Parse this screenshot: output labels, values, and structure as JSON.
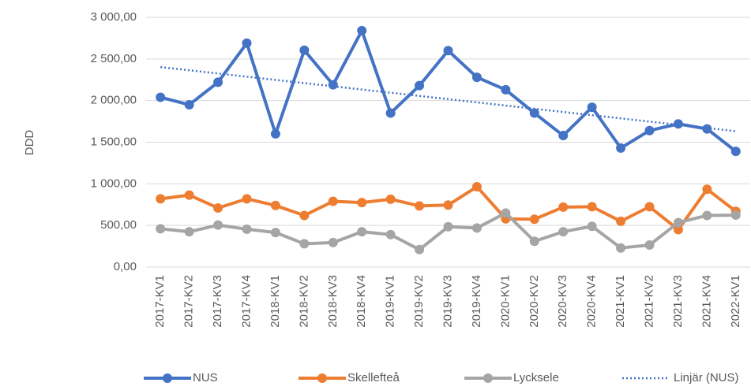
{
  "chart_data": {
    "type": "line",
    "y_label": "DDD",
    "categories": [
      "2017-KV1",
      "2017-KV2",
      "2017-KV3",
      "2017-KV4",
      "2018-KV1",
      "2018-KV2",
      "2018-KV3",
      "2018-KV4",
      "2019-KV1",
      "2019-KV2",
      "2019-KV3",
      "2019-KV4",
      "2020-KV1",
      "2020-KV2",
      "2020-KV3",
      "2020-KV4",
      "2021-KV1",
      "2021-KV2",
      "2021-KV3",
      "2021-KV4",
      "2022-KV1"
    ],
    "series": [
      {
        "name": "NUS",
        "color": "#4472c4",
        "values": [
          2040,
          1950,
          2220,
          2690,
          1600,
          2605,
          2190,
          2840,
          1850,
          2180,
          2600,
          2280,
          2130,
          1850,
          1580,
          1920,
          1430,
          1640,
          1720,
          1660,
          1390
        ]
      },
      {
        "name": "Skellefteå",
        "color": "#ed7d31",
        "values": [
          820,
          865,
          710,
          820,
          740,
          620,
          790,
          775,
          815,
          735,
          745,
          965,
          580,
          575,
          720,
          725,
          550,
          725,
          450,
          935,
          670
        ]
      },
      {
        "name": "Lycksele",
        "color": "#a5a5a5",
        "values": [
          460,
          425,
          505,
          455,
          415,
          280,
          295,
          425,
          390,
          210,
          485,
          470,
          650,
          310,
          425,
          490,
          230,
          265,
          535,
          620,
          625
        ]
      }
    ],
    "trendline": {
      "name": "Linjär (NUS)",
      "series": 0,
      "color": "#4472c4"
    },
    "ylim": [
      0,
      3000
    ],
    "yticks": [
      {
        "value": 0,
        "label": "0,00"
      },
      {
        "value": 500,
        "label": "500,00"
      },
      {
        "value": 1000,
        "label": "1 000,00"
      },
      {
        "value": 1500,
        "label": "1 500,00"
      },
      {
        "value": 2000,
        "label": "2 000,00"
      },
      {
        "value": 2500,
        "label": "2 500,00"
      },
      {
        "value": 3000,
        "label": "3 000,00"
      }
    ],
    "grid": true
  }
}
